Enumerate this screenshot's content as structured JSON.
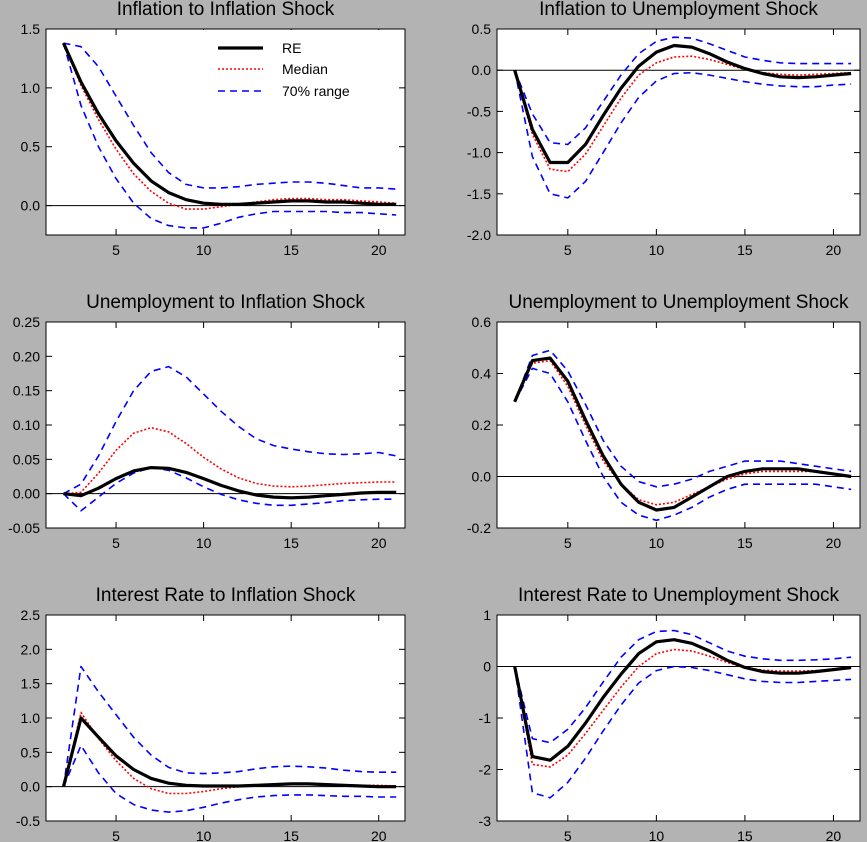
{
  "legend": {
    "entries": [
      {
        "label": "RE",
        "color": "#000000",
        "style": "solid"
      },
      {
        "label": "Median",
        "color": "#ff0000",
        "style": "dotted"
      },
      {
        "label": "70% range",
        "color": "#0000ff",
        "style": "dashed"
      }
    ]
  },
  "chart_data": [
    {
      "type": "line",
      "title": "Inflation to Inflation Shock",
      "xlim": [
        1,
        21.5
      ],
      "ylim": [
        -0.25,
        1.5
      ],
      "xticks": [
        5,
        10,
        15,
        20
      ],
      "yticks": [
        -0.0,
        0.5,
        1.0,
        1.5
      ],
      "ytick_labels": [
        "0.0",
        "0.5",
        "1.0",
        "1.5"
      ],
      "x": [
        2,
        3,
        4,
        5,
        6,
        7,
        8,
        9,
        10,
        11,
        12,
        13,
        14,
        15,
        16,
        17,
        18,
        19,
        20,
        21
      ],
      "series": [
        {
          "name": "RE",
          "values": [
            1.38,
            1.05,
            0.78,
            0.55,
            0.36,
            0.21,
            0.11,
            0.05,
            0.02,
            0.01,
            0.01,
            0.02,
            0.03,
            0.04,
            0.04,
            0.03,
            0.03,
            0.02,
            0.01,
            0.01
          ]
        },
        {
          "name": "Median",
          "values": [
            1.38,
            1.02,
            0.73,
            0.48,
            0.27,
            0.12,
            0.02,
            -0.03,
            -0.03,
            -0.01,
            0.01,
            0.03,
            0.05,
            0.06,
            0.06,
            0.05,
            0.05,
            0.04,
            0.03,
            0.02
          ]
        },
        {
          "name": "70% range",
          "values": [
            1.38,
            1.35,
            1.18,
            0.93,
            0.68,
            0.45,
            0.28,
            0.18,
            0.15,
            0.15,
            0.16,
            0.18,
            0.19,
            0.2,
            0.2,
            0.19,
            0.17,
            0.15,
            0.15,
            0.14
          ]
        },
        {
          "name": "70% range",
          "values": [
            1.38,
            0.85,
            0.5,
            0.23,
            0.02,
            -0.11,
            -0.17,
            -0.19,
            -0.19,
            -0.15,
            -0.1,
            -0.07,
            -0.05,
            -0.05,
            -0.05,
            -0.05,
            -0.06,
            -0.06,
            -0.07,
            -0.08
          ]
        }
      ]
    },
    {
      "type": "line",
      "title": "Inflation to Unemployment Shock",
      "xlim": [
        1,
        21.5
      ],
      "ylim": [
        -2.0,
        0.5
      ],
      "xticks": [
        5,
        10,
        15,
        20
      ],
      "yticks": [
        -2.0,
        -1.5,
        -1.0,
        -0.5,
        0.0,
        0.5
      ],
      "ytick_labels": [
        "-2.0",
        "-1.5",
        "-1.0",
        "-0.5",
        "0.0",
        "0.5"
      ],
      "x": [
        2,
        3,
        4,
        5,
        6,
        7,
        8,
        9,
        10,
        11,
        12,
        13,
        14,
        15,
        16,
        17,
        18,
        19,
        20,
        21
      ],
      "series": [
        {
          "name": "RE",
          "values": [
            0.0,
            -0.72,
            -1.12,
            -1.12,
            -0.9,
            -0.55,
            -0.22,
            0.05,
            0.22,
            0.3,
            0.28,
            0.2,
            0.1,
            0.02,
            -0.04,
            -0.08,
            -0.09,
            -0.08,
            -0.06,
            -0.04
          ]
        },
        {
          "name": "Median",
          "values": [
            0.0,
            -0.78,
            -1.2,
            -1.23,
            -1.02,
            -0.68,
            -0.34,
            -0.06,
            0.09,
            0.16,
            0.17,
            0.13,
            0.07,
            0.01,
            -0.03,
            -0.05,
            -0.06,
            -0.05,
            -0.04,
            -0.03
          ]
        },
        {
          "name": "70% range",
          "values": [
            0.0,
            -0.53,
            -0.88,
            -0.9,
            -0.7,
            -0.38,
            -0.06,
            0.2,
            0.35,
            0.4,
            0.39,
            0.32,
            0.24,
            0.16,
            0.12,
            0.09,
            0.08,
            0.08,
            0.08,
            0.08
          ]
        },
        {
          "name": "70% range",
          "values": [
            0.0,
            -1.05,
            -1.5,
            -1.55,
            -1.35,
            -1.0,
            -0.64,
            -0.33,
            -0.13,
            -0.04,
            -0.03,
            -0.06,
            -0.1,
            -0.14,
            -0.17,
            -0.19,
            -0.2,
            -0.2,
            -0.18,
            -0.17
          ]
        }
      ]
    },
    {
      "type": "line",
      "title": "Unemployment to Inflation Shock",
      "xlim": [
        1,
        21.5
      ],
      "ylim": [
        -0.05,
        0.25
      ],
      "xticks": [
        5,
        10,
        15,
        20
      ],
      "yticks": [
        -0.05,
        0.0,
        0.05,
        0.1,
        0.15,
        0.2,
        0.25
      ],
      "ytick_labels": [
        "-0.05",
        "0.00",
        "0.05",
        "0.10",
        "0.15",
        "0.20",
        "0.25"
      ],
      "x": [
        2,
        3,
        4,
        5,
        6,
        7,
        8,
        9,
        10,
        11,
        12,
        13,
        14,
        15,
        16,
        17,
        18,
        19,
        20,
        21
      ],
      "series": [
        {
          "name": "RE",
          "values": [
            0.0,
            -0.003,
            0.008,
            0.022,
            0.033,
            0.038,
            0.037,
            0.031,
            0.022,
            0.012,
            0.004,
            -0.002,
            -0.005,
            -0.006,
            -0.005,
            -0.003,
            -0.001,
            0.001,
            0.002,
            0.002
          ]
        },
        {
          "name": "Median",
          "values": [
            0.0,
            0.002,
            0.03,
            0.063,
            0.088,
            0.096,
            0.09,
            0.073,
            0.053,
            0.036,
            0.023,
            0.015,
            0.011,
            0.01,
            0.011,
            0.013,
            0.015,
            0.016,
            0.017,
            0.017
          ]
        },
        {
          "name": "70% range",
          "values": [
            0.0,
            0.014,
            0.055,
            0.105,
            0.15,
            0.178,
            0.185,
            0.17,
            0.145,
            0.12,
            0.098,
            0.08,
            0.07,
            0.065,
            0.061,
            0.058,
            0.057,
            0.058,
            0.06,
            0.055
          ]
        },
        {
          "name": "70% range",
          "values": [
            0.0,
            -0.025,
            -0.005,
            0.015,
            0.03,
            0.038,
            0.034,
            0.023,
            0.01,
            -0.001,
            -0.009,
            -0.014,
            -0.017,
            -0.017,
            -0.015,
            -0.013,
            -0.01,
            -0.009,
            -0.008,
            -0.008
          ]
        }
      ]
    },
    {
      "type": "line",
      "title": "Unemployment to Unemployment Shock",
      "xlim": [
        1,
        21.5
      ],
      "ylim": [
        -0.2,
        0.6
      ],
      "xticks": [
        5,
        10,
        15,
        20
      ],
      "yticks": [
        -0.2,
        0.0,
        0.2,
        0.4,
        0.6
      ],
      "ytick_labels": [
        "-0.2",
        "0.0",
        "0.2",
        "0.4",
        "0.6"
      ],
      "x": [
        2,
        3,
        4,
        5,
        6,
        7,
        8,
        9,
        10,
        11,
        12,
        13,
        14,
        15,
        16,
        17,
        18,
        19,
        20,
        21
      ],
      "series": [
        {
          "name": "RE",
          "values": [
            0.29,
            0.45,
            0.46,
            0.37,
            0.22,
            0.08,
            -0.03,
            -0.1,
            -0.13,
            -0.12,
            -0.08,
            -0.04,
            0.0,
            0.02,
            0.03,
            0.03,
            0.03,
            0.02,
            0.01,
            0.0
          ]
        },
        {
          "name": "Median",
          "values": [
            0.29,
            0.44,
            0.45,
            0.35,
            0.2,
            0.06,
            -0.03,
            -0.09,
            -0.11,
            -0.1,
            -0.07,
            -0.04,
            -0.01,
            0.01,
            0.02,
            0.02,
            0.02,
            0.02,
            0.01,
            0.0
          ]
        },
        {
          "name": "70% range",
          "values": [
            0.29,
            0.47,
            0.49,
            0.41,
            0.28,
            0.14,
            0.04,
            -0.02,
            -0.04,
            -0.03,
            -0.01,
            0.02,
            0.04,
            0.06,
            0.06,
            0.06,
            0.05,
            0.04,
            0.03,
            0.02
          ]
        },
        {
          "name": "70% range",
          "values": [
            0.29,
            0.42,
            0.4,
            0.29,
            0.14,
            0.0,
            -0.1,
            -0.15,
            -0.17,
            -0.15,
            -0.12,
            -0.08,
            -0.05,
            -0.03,
            -0.03,
            -0.03,
            -0.03,
            -0.03,
            -0.04,
            -0.05
          ]
        }
      ]
    },
    {
      "type": "line",
      "title": "Interest Rate to Inflation Shock",
      "xlim": [
        1,
        21.5
      ],
      "ylim": [
        -0.5,
        2.5
      ],
      "xticks": [
        5,
        10,
        15,
        20
      ],
      "yticks": [
        -0.5,
        0.0,
        0.5,
        1.0,
        1.5,
        2.0,
        2.5
      ],
      "ytick_labels": [
        "-0.5",
        "0.0",
        "0.5",
        "1.0",
        "1.5",
        "2.0",
        "2.5"
      ],
      "x": [
        2,
        3,
        4,
        5,
        6,
        7,
        8,
        9,
        10,
        11,
        12,
        13,
        14,
        15,
        16,
        17,
        18,
        19,
        20,
        21
      ],
      "series": [
        {
          "name": "RE",
          "values": [
            0.0,
            1.0,
            0.72,
            0.45,
            0.25,
            0.12,
            0.05,
            0.02,
            0.01,
            0.01,
            0.01,
            0.02,
            0.03,
            0.04,
            0.04,
            0.03,
            0.02,
            0.01,
            0.0,
            0.0
          ]
        },
        {
          "name": "Median",
          "values": [
            0.0,
            1.08,
            0.7,
            0.38,
            0.12,
            -0.03,
            -0.1,
            -0.1,
            -0.07,
            -0.03,
            0.0,
            0.02,
            0.04,
            0.05,
            0.05,
            0.04,
            0.03,
            0.02,
            0.02,
            0.01
          ]
        },
        {
          "name": "70% range",
          "values": [
            0.0,
            1.75,
            1.38,
            1.05,
            0.72,
            0.46,
            0.28,
            0.2,
            0.19,
            0.2,
            0.22,
            0.26,
            0.29,
            0.3,
            0.29,
            0.27,
            0.24,
            0.22,
            0.21,
            0.21
          ]
        },
        {
          "name": "70% range",
          "values": [
            0.0,
            0.6,
            0.2,
            -0.1,
            -0.26,
            -0.34,
            -0.37,
            -0.35,
            -0.3,
            -0.24,
            -0.19,
            -0.15,
            -0.13,
            -0.12,
            -0.12,
            -0.13,
            -0.14,
            -0.14,
            -0.15,
            -0.15
          ]
        }
      ]
    },
    {
      "type": "line",
      "title": "Interest Rate to Unemployment Shock",
      "xlim": [
        1,
        21.5
      ],
      "ylim": [
        -3,
        1
      ],
      "xticks": [
        5,
        10,
        15,
        20
      ],
      "yticks": [
        -3,
        -2,
        -1,
        0,
        1
      ],
      "ytick_labels": [
        "-3",
        "-2",
        "-1",
        "0",
        "1"
      ],
      "x": [
        2,
        3,
        4,
        5,
        6,
        7,
        8,
        9,
        10,
        11,
        12,
        13,
        14,
        15,
        16,
        17,
        18,
        19,
        20,
        21
      ],
      "series": [
        {
          "name": "RE",
          "values": [
            0.0,
            -1.75,
            -1.82,
            -1.55,
            -1.1,
            -0.6,
            -0.15,
            0.25,
            0.48,
            0.52,
            0.45,
            0.3,
            0.12,
            -0.02,
            -0.1,
            -0.13,
            -0.13,
            -0.1,
            -0.06,
            -0.02
          ]
        },
        {
          "name": "Median",
          "values": [
            0.0,
            -1.9,
            -1.95,
            -1.72,
            -1.3,
            -0.85,
            -0.4,
            0.0,
            0.25,
            0.33,
            0.3,
            0.2,
            0.08,
            -0.02,
            -0.07,
            -0.09,
            -0.09,
            -0.08,
            -0.06,
            -0.04
          ]
        },
        {
          "name": "70% range",
          "values": [
            0.0,
            -1.4,
            -1.48,
            -1.22,
            -0.8,
            -0.3,
            0.18,
            0.52,
            0.68,
            0.7,
            0.62,
            0.46,
            0.3,
            0.2,
            0.15,
            0.12,
            0.12,
            0.13,
            0.15,
            0.18
          ]
        },
        {
          "name": "70% range",
          "values": [
            0.0,
            -2.45,
            -2.55,
            -2.25,
            -1.78,
            -1.25,
            -0.75,
            -0.32,
            -0.08,
            0.0,
            -0.02,
            -0.08,
            -0.16,
            -0.24,
            -0.29,
            -0.31,
            -0.31,
            -0.29,
            -0.27,
            -0.25
          ]
        }
      ]
    }
  ]
}
